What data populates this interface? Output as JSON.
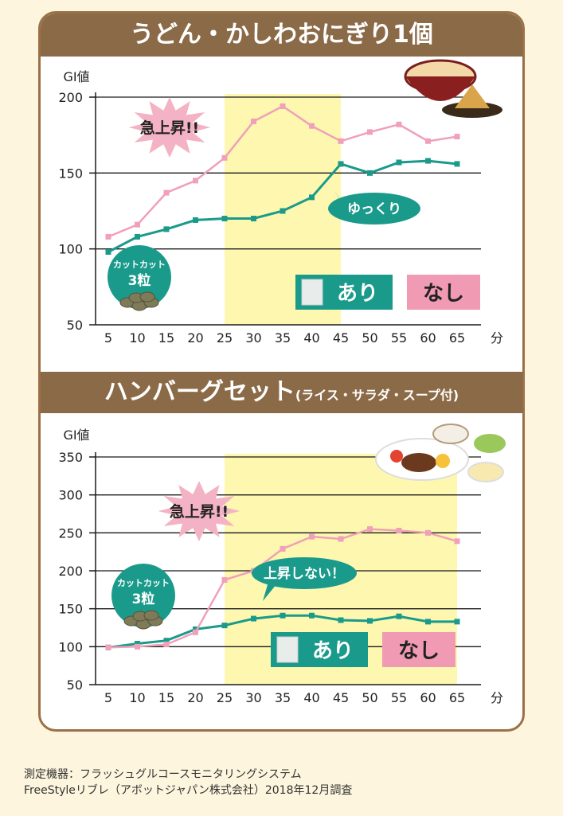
{
  "chart_data": [
    {
      "type": "line",
      "title": "うどん・かしわおにぎり1個",
      "ylabel": "GI値",
      "xunit": "分",
      "x": [
        5,
        10,
        15,
        20,
        25,
        30,
        35,
        40,
        45,
        50,
        55,
        60,
        65
      ],
      "ylim": [
        50,
        200
      ],
      "yticks": [
        50,
        100,
        150,
        200
      ],
      "series": [
        {
          "name": "あり",
          "color": "#1a9a8a",
          "values": [
            98,
            108,
            113,
            119,
            120,
            120,
            125,
            134,
            156,
            150,
            157,
            158,
            156
          ]
        },
        {
          "name": "なし",
          "color": "#f0a0b8",
          "values": [
            108,
            116,
            137,
            145,
            160,
            184,
            194,
            181,
            171,
            177,
            182,
            171,
            174
          ]
        }
      ],
      "highlight": [
        25,
        45
      ],
      "annotations": {
        "burst": "急上昇!!",
        "bubble": "ゆっくり",
        "pill_line1": "カットカット",
        "pill_line2": "3粒"
      },
      "legend": {
        "with": "あり",
        "without": "なし"
      }
    },
    {
      "type": "line",
      "title": "ハンバーグセット",
      "subtitle": "(ライス・サラダ・スープ付)",
      "ylabel": "GI値",
      "xunit": "分",
      "x": [
        5,
        10,
        15,
        20,
        25,
        30,
        35,
        40,
        45,
        50,
        55,
        60,
        65
      ],
      "ylim": [
        50,
        350
      ],
      "yticks": [
        50,
        100,
        150,
        200,
        250,
        300,
        350
      ],
      "series": [
        {
          "name": "あり",
          "color": "#1a9a8a",
          "values": [
            99,
            104,
            108,
            123,
            128,
            137,
            141,
            141,
            135,
            134,
            140,
            133,
            133
          ]
        },
        {
          "name": "なし",
          "color": "#f0a0b8",
          "values": [
            99,
            100,
            103,
            119,
            188,
            200,
            229,
            245,
            242,
            255,
            253,
            250,
            239
          ]
        }
      ],
      "highlight": [
        25,
        65
      ],
      "annotations": {
        "burst": "急上昇!!",
        "bubble": "上昇しない！",
        "pill_line1": "カットカット",
        "pill_line2": "3粒"
      },
      "legend": {
        "with": "あり",
        "without": "なし"
      }
    }
  ],
  "footer": {
    "line1": "測定機器：フラッシュグルコースモニタリングシステム",
    "line2": "FreeStyleリブレ（アボットジャパン株式会社）2018年12月調査"
  }
}
